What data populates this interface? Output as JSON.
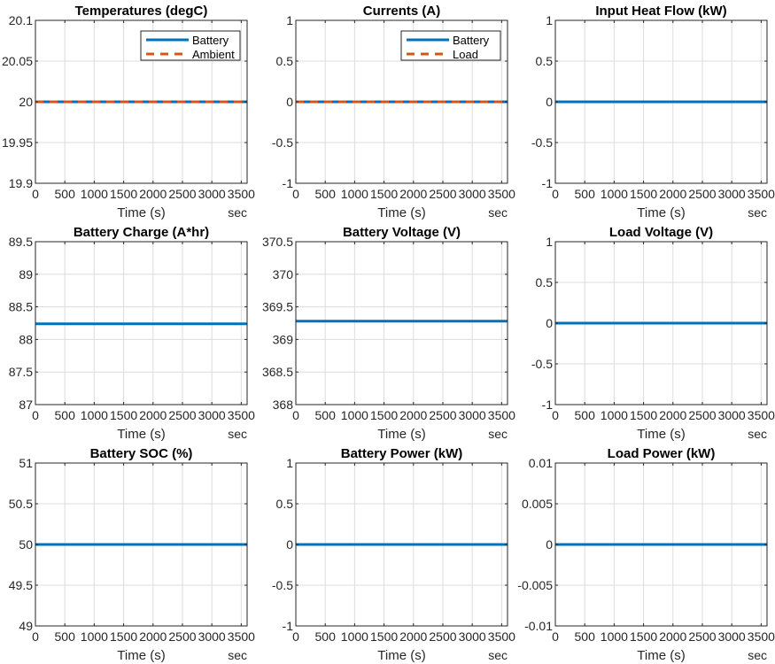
{
  "colors": {
    "battery": "#0072BD",
    "secondary": "#D95319",
    "grid": "#dcdcdc",
    "axis": "#262626"
  },
  "chart_data": [
    {
      "type": "line",
      "title": "Temperatures (degC)",
      "xlabel": "Time (s)",
      "xunit": "sec",
      "xlim": [
        0,
        3600
      ],
      "ylim": [
        19.9,
        20.1
      ],
      "grid": true,
      "xticks": [
        0,
        500,
        1000,
        1500,
        2000,
        2500,
        3000,
        3500
      ],
      "yticks": [
        19.9,
        19.95,
        20,
        20.05,
        20.1
      ],
      "yticklabels": [
        "19.9",
        "19.95",
        "20",
        "20.05",
        "20.1"
      ],
      "legend": "top-right",
      "series": [
        {
          "name": "Battery",
          "style": "solid",
          "color": "#0072BD",
          "x": [
            0,
            3600
          ],
          "y": [
            20,
            20
          ]
        },
        {
          "name": "Ambient",
          "style": "dashed",
          "color": "#D95319",
          "x": [
            0,
            3600
          ],
          "y": [
            20,
            20
          ]
        }
      ]
    },
    {
      "type": "line",
      "title": "Currents (A)",
      "xlabel": "Time (s)",
      "xunit": "sec",
      "xlim": [
        0,
        3600
      ],
      "ylim": [
        -1,
        1
      ],
      "grid": true,
      "xticks": [
        0,
        500,
        1000,
        1500,
        2000,
        2500,
        3000,
        3500
      ],
      "yticks": [
        -1,
        -0.5,
        0,
        0.5,
        1
      ],
      "yticklabels": [
        "-1",
        "-0.5",
        "0",
        "0.5",
        "1"
      ],
      "legend": "top-right",
      "series": [
        {
          "name": "Battery",
          "style": "solid",
          "color": "#0072BD",
          "x": [
            0,
            3600
          ],
          "y": [
            0,
            0
          ]
        },
        {
          "name": "Load",
          "style": "dashed",
          "color": "#D95319",
          "x": [
            0,
            3600
          ],
          "y": [
            0,
            0
          ]
        }
      ]
    },
    {
      "type": "line",
      "title": "Input Heat Flow (kW)",
      "xlabel": "Time (s)",
      "xunit": "sec",
      "xlim": [
        0,
        3600
      ],
      "ylim": [
        -1,
        1
      ],
      "grid": true,
      "xticks": [
        0,
        500,
        1000,
        1500,
        2000,
        2500,
        3000,
        3500
      ],
      "yticks": [
        -1,
        -0.5,
        0,
        0.5,
        1
      ],
      "yticklabels": [
        "-1",
        "-0.5",
        "0",
        "0.5",
        "1"
      ],
      "series": [
        {
          "style": "solid",
          "color": "#0072BD",
          "x": [
            0,
            3600
          ],
          "y": [
            0,
            0
          ]
        }
      ]
    },
    {
      "type": "line",
      "title": "Battery Charge (A*hr)",
      "xlabel": "Time (s)",
      "xunit": "sec",
      "xlim": [
        0,
        3600
      ],
      "ylim": [
        87,
        89.5
      ],
      "grid": true,
      "xticks": [
        0,
        500,
        1000,
        1500,
        2000,
        2500,
        3000,
        3500
      ],
      "yticks": [
        87,
        87.5,
        88,
        88.5,
        89,
        89.5
      ],
      "yticklabels": [
        "87",
        "87.5",
        "88",
        "88.5",
        "89",
        "89.5"
      ],
      "series": [
        {
          "style": "solid",
          "color": "#0072BD",
          "x": [
            0,
            3600
          ],
          "y": [
            88.24,
            88.24
          ]
        }
      ]
    },
    {
      "type": "line",
      "title": "Battery Voltage (V)",
      "xlabel": "Time (s)",
      "xunit": "sec",
      "xlim": [
        0,
        3600
      ],
      "ylim": [
        368,
        370.5
      ],
      "grid": true,
      "xticks": [
        0,
        500,
        1000,
        1500,
        2000,
        2500,
        3000,
        3500
      ],
      "yticks": [
        368,
        368.5,
        369,
        369.5,
        370,
        370.5
      ],
      "yticklabels": [
        "368",
        "368.5",
        "369",
        "369.5",
        "370",
        "370.5"
      ],
      "series": [
        {
          "style": "solid",
          "color": "#0072BD",
          "x": [
            0,
            3600
          ],
          "y": [
            369.28,
            369.28
          ]
        }
      ]
    },
    {
      "type": "line",
      "title": "Load Voltage (V)",
      "xlabel": "Time (s)",
      "xunit": "sec",
      "xlim": [
        0,
        3600
      ],
      "ylim": [
        -1,
        1
      ],
      "grid": true,
      "xticks": [
        0,
        500,
        1000,
        1500,
        2000,
        2500,
        3000,
        3500
      ],
      "yticks": [
        -1,
        -0.5,
        0,
        0.5,
        1
      ],
      "yticklabels": [
        "-1",
        "-0.5",
        "0",
        "0.5",
        "1"
      ],
      "series": [
        {
          "style": "solid",
          "color": "#0072BD",
          "x": [
            0,
            3600
          ],
          "y": [
            0,
            0
          ]
        }
      ]
    },
    {
      "type": "line",
      "title": "Battery SOC (%)",
      "xlabel": "Time (s)",
      "xunit": "sec",
      "xlim": [
        0,
        3600
      ],
      "ylim": [
        49,
        51
      ],
      "grid": true,
      "xticks": [
        0,
        500,
        1000,
        1500,
        2000,
        2500,
        3000,
        3500
      ],
      "yticks": [
        49,
        49.5,
        50,
        50.5,
        51
      ],
      "yticklabels": [
        "49",
        "49.5",
        "50",
        "50.5",
        "51"
      ],
      "series": [
        {
          "style": "solid",
          "color": "#0072BD",
          "x": [
            0,
            3600
          ],
          "y": [
            50,
            50
          ]
        }
      ]
    },
    {
      "type": "line",
      "title": "Battery Power (kW)",
      "xlabel": "Time (s)",
      "xunit": "sec",
      "xlim": [
        0,
        3600
      ],
      "ylim": [
        -1,
        1
      ],
      "grid": true,
      "xticks": [
        0,
        500,
        1000,
        1500,
        2000,
        2500,
        3000,
        3500
      ],
      "yticks": [
        -1,
        -0.5,
        0,
        0.5,
        1
      ],
      "yticklabels": [
        "-1",
        "-0.5",
        "0",
        "0.5",
        "1"
      ],
      "series": [
        {
          "style": "solid",
          "color": "#0072BD",
          "x": [
            0,
            3600
          ],
          "y": [
            0,
            0
          ]
        }
      ]
    },
    {
      "type": "line",
      "title": "Load Power (kW)",
      "xlabel": "Time (s)",
      "xunit": "sec",
      "xlim": [
        0,
        3600
      ],
      "ylim": [
        -0.01,
        0.01
      ],
      "grid": true,
      "xticks": [
        0,
        500,
        1000,
        1500,
        2000,
        2500,
        3000,
        3500
      ],
      "yticks": [
        -0.01,
        -0.005,
        0,
        0.005,
        0.01
      ],
      "yticklabels": [
        "-0.01",
        "-0.005",
        "0",
        "0.005",
        "0.01"
      ],
      "series": [
        {
          "style": "solid",
          "color": "#0072BD",
          "x": [
            0,
            3600
          ],
          "y": [
            0,
            0
          ]
        }
      ]
    }
  ]
}
